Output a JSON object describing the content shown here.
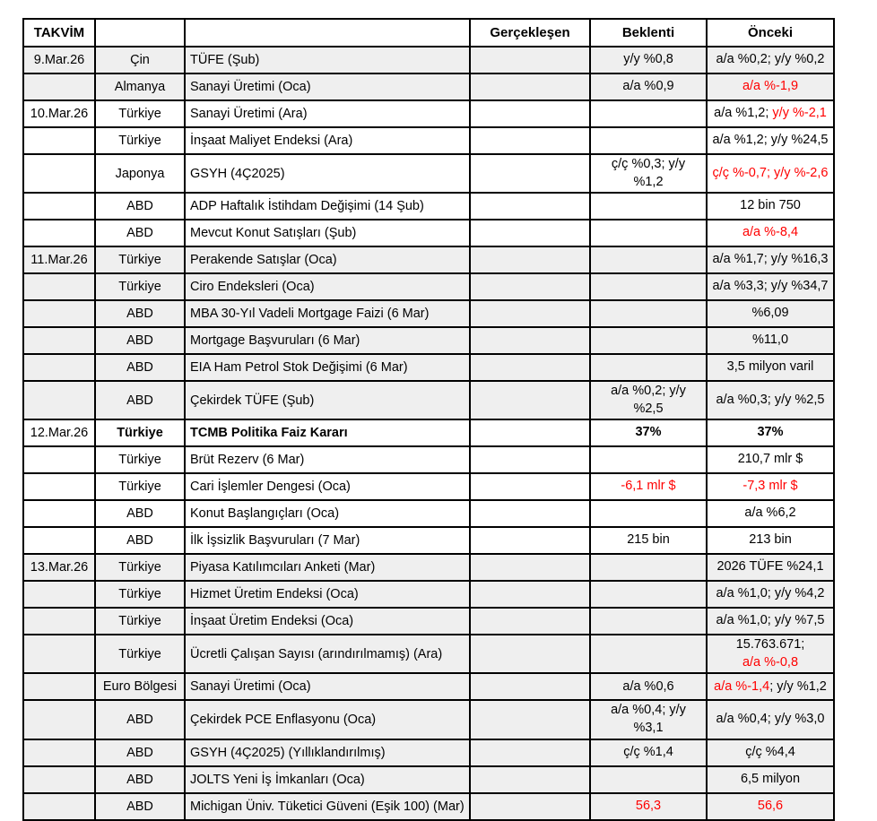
{
  "colors": {
    "negative_red": "#ff0000",
    "row_shade": "#efefef",
    "border": "#000000",
    "background": "#ffffff"
  },
  "table": {
    "header": [
      "TAKVİM",
      "",
      "",
      "Gerçekleşen",
      "Beklenti",
      "Önceki"
    ],
    "rows": [
      {
        "date": "9.Mar.26",
        "country": "Çin",
        "event": "TÜFE (Şub)",
        "actual": "",
        "expected": [
          {
            "t": "y/y %0,8"
          }
        ],
        "previous": [
          {
            "t": "a/a %0,2; y/y %0,2"
          }
        ],
        "shaded": true,
        "bold": false
      },
      {
        "date": "",
        "country": "Almanya",
        "event": "Sanayi Üretimi (Oca)",
        "actual": "",
        "expected": [
          {
            "t": "a/a %0,9"
          }
        ],
        "previous": [
          {
            "t": "a/a %-1,9",
            "c": "red"
          }
        ],
        "shaded": true,
        "bold": false
      },
      {
        "date": "10.Mar.26",
        "country": "Türkiye",
        "event": "Sanayi Üretimi (Ara)",
        "actual": "",
        "expected": [],
        "previous": [
          {
            "t": "a/a %1,2; "
          },
          {
            "t": "y/y %-2,1",
            "c": "red"
          }
        ],
        "shaded": false,
        "bold": false
      },
      {
        "date": "",
        "country": "Türkiye",
        "event": "İnşaat Maliyet Endeksi (Ara)",
        "actual": "",
        "expected": [],
        "previous": [
          {
            "t": "a/a %1,2; y/y %24,5"
          }
        ],
        "shaded": false,
        "bold": false
      },
      {
        "date": "",
        "country": "Japonya",
        "event": "GSYH (4Ç2025)",
        "actual": "",
        "expected": [
          {
            "t": "ç/ç %0,3; y/y %1,2"
          }
        ],
        "previous": [
          {
            "t": "ç/ç %-0,7; y/y %-2,6",
            "c": "red"
          }
        ],
        "shaded": false,
        "bold": false
      },
      {
        "date": "",
        "country": "ABD",
        "event": "ADP Haftalık İstihdam Değişimi (14 Şub)",
        "actual": "",
        "expected": [],
        "previous": [
          {
            "t": "12 bin 750"
          }
        ],
        "shaded": false,
        "bold": false
      },
      {
        "date": "",
        "country": "ABD",
        "event": "Mevcut Konut Satışları (Şub)",
        "actual": "",
        "expected": [],
        "previous": [
          {
            "t": "a/a %-8,4",
            "c": "red"
          }
        ],
        "shaded": false,
        "bold": false
      },
      {
        "date": "11.Mar.26",
        "country": "Türkiye",
        "event": "Perakende Satışlar (Oca)",
        "actual": "",
        "expected": [],
        "previous": [
          {
            "t": "a/a %1,7; y/y %16,3"
          }
        ],
        "shaded": true,
        "bold": false
      },
      {
        "date": "",
        "country": "Türkiye",
        "event": "Ciro Endeksleri (Oca)",
        "actual": "",
        "expected": [],
        "previous": [
          {
            "t": "a/a %3,3; y/y %34,7"
          }
        ],
        "shaded": true,
        "bold": false
      },
      {
        "date": "",
        "country": "ABD",
        "event": "MBA 30-Yıl Vadeli Mortgage Faizi (6 Mar)",
        "actual": "",
        "expected": [],
        "previous": [
          {
            "t": "%6,09"
          }
        ],
        "shaded": true,
        "bold": false
      },
      {
        "date": "",
        "country": "ABD",
        "event": "Mortgage Başvuruları (6 Mar)",
        "actual": "",
        "expected": [],
        "previous": [
          {
            "t": "%11,0"
          }
        ],
        "shaded": true,
        "bold": false
      },
      {
        "date": "",
        "country": "ABD",
        "event": "EIA Ham Petrol Stok Değişimi (6 Mar)",
        "actual": "",
        "expected": [],
        "previous": [
          {
            "t": "3,5 milyon varil"
          }
        ],
        "shaded": true,
        "bold": false
      },
      {
        "date": "",
        "country": "ABD",
        "event": "Çekirdek TÜFE (Şub)",
        "actual": "",
        "expected": [
          {
            "t": "a/a %0,2; y/y %2,5"
          }
        ],
        "previous": [
          {
            "t": "a/a %0,3; y/y %2,5"
          }
        ],
        "shaded": true,
        "bold": false
      },
      {
        "date": "12.Mar.26",
        "country": "Türkiye",
        "event": "TCMB Politika Faiz Kararı",
        "actual": "",
        "expected": [
          {
            "t": "37%"
          }
        ],
        "previous": [
          {
            "t": "37%"
          }
        ],
        "shaded": false,
        "bold": true
      },
      {
        "date": "",
        "country": "Türkiye",
        "event": "Brüt Rezerv (6 Mar)",
        "actual": "",
        "expected": [],
        "previous": [
          {
            "t": "210,7 mlr $"
          }
        ],
        "shaded": false,
        "bold": false
      },
      {
        "date": "",
        "country": "Türkiye",
        "event": "Cari İşlemler Dengesi (Oca)",
        "actual": "",
        "expected": [
          {
            "t": "-6,1 mlr $",
            "c": "red"
          }
        ],
        "previous": [
          {
            "t": "-7,3 mlr $",
            "c": "red"
          }
        ],
        "shaded": false,
        "bold": false
      },
      {
        "date": "",
        "country": "ABD",
        "event": "Konut Başlangıçları (Oca)",
        "actual": "",
        "expected": [],
        "previous": [
          {
            "t": "a/a %6,2"
          }
        ],
        "shaded": false,
        "bold": false
      },
      {
        "date": "",
        "country": "ABD",
        "event": "İlk İşsizlik Başvuruları (7 Mar)",
        "actual": "",
        "expected": [
          {
            "t": "215 bin"
          }
        ],
        "previous": [
          {
            "t": "213 bin"
          }
        ],
        "shaded": false,
        "bold": false
      },
      {
        "date": "13.Mar.26",
        "country": "Türkiye",
        "event": "Piyasa Katılımcıları Anketi (Mar)",
        "actual": "",
        "expected": [],
        "previous": [
          {
            "t": "2026 TÜFE %24,1"
          }
        ],
        "shaded": true,
        "bold": false
      },
      {
        "date": "",
        "country": "Türkiye",
        "event": "Hizmet Üretim Endeksi (Oca)",
        "actual": "",
        "expected": [],
        "previous": [
          {
            "t": "a/a %1,0; y/y %4,2"
          }
        ],
        "shaded": true,
        "bold": false
      },
      {
        "date": "",
        "country": "Türkiye",
        "event": "İnşaat Üretim Endeksi (Oca)",
        "actual": "",
        "expected": [],
        "previous": [
          {
            "t": "a/a %1,0; y/y %7,5"
          }
        ],
        "shaded": true,
        "bold": false
      },
      {
        "date": "",
        "country": "Türkiye",
        "event": "Ücretli Çalışan Sayısı (arındırılmamış) (Ara)",
        "actual": "",
        "expected": [],
        "previous": [
          {
            "t": "15.763.671;\n"
          },
          {
            "t": "a/a %-0,8",
            "c": "red"
          }
        ],
        "shaded": true,
        "bold": false
      },
      {
        "date": "",
        "country": "Euro Bölgesi",
        "event": "Sanayi Üretimi (Oca)",
        "actual": "",
        "expected": [
          {
            "t": "a/a %0,6"
          }
        ],
        "previous": [
          {
            "t": "a/a %-1,4",
            "c": "red"
          },
          {
            "t": "; y/y %1,2"
          }
        ],
        "shaded": true,
        "bold": false
      },
      {
        "date": "",
        "country": "ABD",
        "event": "Çekirdek PCE Enflasyonu (Oca)",
        "actual": "",
        "expected": [
          {
            "t": "a/a %0,4; y/y %3,1"
          }
        ],
        "previous": [
          {
            "t": "a/a %0,4; y/y %3,0"
          }
        ],
        "shaded": true,
        "bold": false
      },
      {
        "date": "",
        "country": "ABD",
        "event": "GSYH (4Ç2025) (Yıllıklandırılmış)",
        "actual": "",
        "expected": [
          {
            "t": "ç/ç %1,4"
          }
        ],
        "previous": [
          {
            "t": "ç/ç %4,4"
          }
        ],
        "shaded": true,
        "bold": false
      },
      {
        "date": "",
        "country": "ABD",
        "event": "JOLTS Yeni İş İmkanları (Oca)",
        "actual": "",
        "expected": [],
        "previous": [
          {
            "t": "6,5 milyon"
          }
        ],
        "shaded": true,
        "bold": false
      },
      {
        "date": "",
        "country": "ABD",
        "event": "Michigan Üniv. Tüketici Güveni (Eşik 100) (Mar)",
        "actual": "",
        "expected": [
          {
            "t": "56,3",
            "c": "red"
          }
        ],
        "previous": [
          {
            "t": "56,6",
            "c": "red"
          }
        ],
        "shaded": true,
        "bold": false
      }
    ]
  }
}
